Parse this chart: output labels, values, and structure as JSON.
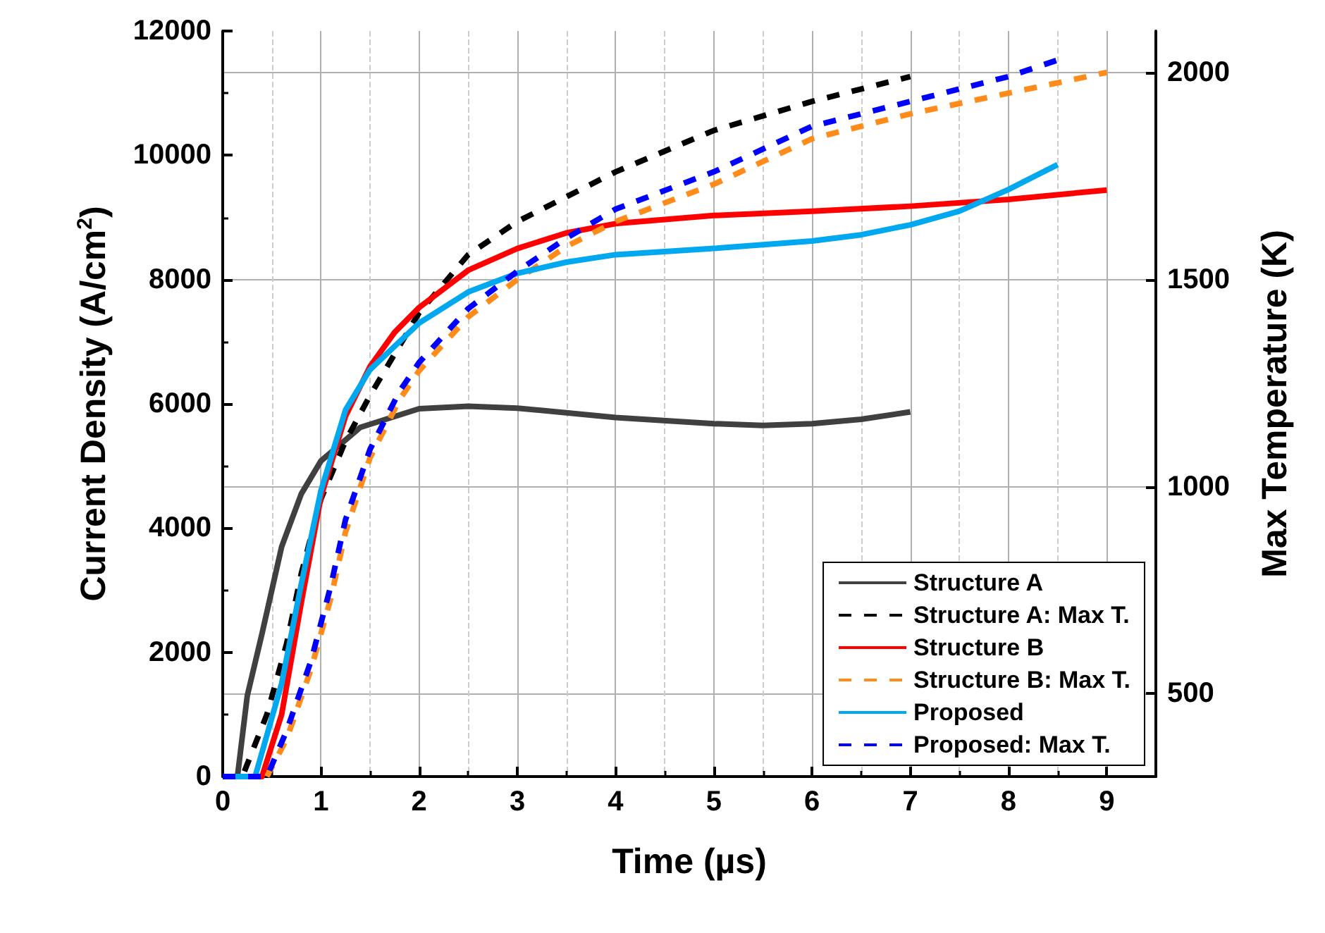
{
  "chart_data": {
    "type": "line",
    "xlabel": "Time (µs)",
    "ylabel": "Current Density (A/cm$^{2}$)",
    "y2label": "Max Temperature (K)",
    "xlim": [
      0,
      9.5
    ],
    "xticks": [
      0,
      1,
      2,
      3,
      4,
      5,
      6,
      7,
      8,
      9
    ],
    "ylim": [
      0,
      12000
    ],
    "yticks": [
      0,
      2000,
      4000,
      6000,
      8000,
      10000,
      12000
    ],
    "y2lim": [
      300,
      2100
    ],
    "y2ticks": [
      500,
      1000,
      1500,
      2000
    ],
    "grid": true,
    "legend": "bottom right",
    "marker": "none",
    "series": [
      {
        "name": "Structure A",
        "color": "#404040",
        "line_style": "solid",
        "x": [
          0,
          0.15,
          0.25,
          0.4,
          0.6,
          0.8,
          1,
          1.4,
          2,
          2.5,
          3,
          4,
          5,
          5.5,
          6,
          6.5,
          7
        ],
        "values": [
          0,
          0,
          1300,
          2300,
          3700,
          4550,
          5080,
          5620,
          5920,
          5960,
          5930,
          5780,
          5680,
          5650,
          5680,
          5750,
          5870
        ]
      },
      {
        "name": "Structure A: Max T.",
        "color": "#000000",
        "line_style": "dashed",
        "axis": "y2",
        "x": [
          0,
          0.2,
          0.45,
          0.65,
          0.8,
          1,
          1.25,
          1.5,
          2,
          2.5,
          3,
          4,
          5,
          6,
          7
        ],
        "values": [
          300,
          300,
          450,
          620,
          790,
          970,
          1110,
          1220,
          1420,
          1560,
          1640,
          1760,
          1860,
          1930,
          1990
        ]
      },
      {
        "name": "Structure B",
        "color": "#ff0000",
        "line_style": "solid",
        "x": [
          0,
          0.4,
          0.6,
          0.8,
          1,
          1.25,
          1.5,
          1.75,
          2,
          2.5,
          3,
          3.5,
          4,
          5,
          6,
          7,
          8,
          9
        ],
        "values": [
          0,
          0,
          1000,
          2800,
          4500,
          5800,
          6600,
          7150,
          7550,
          8150,
          8500,
          8750,
          8900,
          9030,
          9100,
          9180,
          9290,
          9440
        ]
      },
      {
        "name": "Structure B: Max T.",
        "color": "#ff8c1a",
        "line_style": "dashed",
        "axis": "y2",
        "x": [
          0.45,
          0.65,
          0.9,
          1.1,
          1.25,
          1.5,
          1.8,
          2,
          2.5,
          3,
          3.5,
          4,
          5,
          6,
          7,
          8,
          9
        ],
        "values": [
          300,
          390,
          560,
          730,
          890,
          1070,
          1210,
          1280,
          1410,
          1500,
          1580,
          1640,
          1730,
          1840,
          1900,
          1950,
          2000
        ]
      },
      {
        "name": "Proposed",
        "color": "#00a8f0",
        "line_style": "solid",
        "x": [
          0,
          0.33,
          0.6,
          0.8,
          1,
          1.25,
          1.5,
          2,
          2.5,
          3,
          3.5,
          4,
          5,
          6,
          6.5,
          7,
          7.5,
          8,
          8.5
        ],
        "values": [
          0,
          0,
          1500,
          3100,
          4600,
          5900,
          6550,
          7300,
          7800,
          8100,
          8280,
          8400,
          8500,
          8620,
          8720,
          8880,
          9100,
          9450,
          9850
        ]
      },
      {
        "name": "Proposed: Max T.",
        "color": "#0000ff",
        "line_style": "dashed",
        "axis": "y2",
        "x": [
          0,
          0.45,
          0.65,
          0.9,
          1.1,
          1.25,
          1.5,
          1.8,
          2,
          2.5,
          3,
          3.5,
          4,
          5,
          6,
          7,
          8,
          8.5
        ],
        "values": [
          300,
          300,
          410,
          580,
          760,
          920,
          1090,
          1230,
          1300,
          1430,
          1520,
          1600,
          1670,
          1760,
          1870,
          1930,
          1990,
          2030
        ]
      }
    ]
  }
}
